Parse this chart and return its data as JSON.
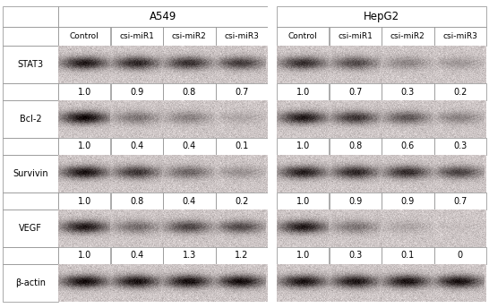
{
  "title_A549": "A549",
  "title_HepG2": "HepG2",
  "col_headers": [
    "Control",
    "csi-miR1",
    "csi-miR2",
    "csi-miR3"
  ],
  "values_A549": {
    "STAT3": [
      "1.0",
      "0.9",
      "0.8",
      "0.7"
    ],
    "Bcl-2": [
      "1.0",
      "0.4",
      "0.4",
      "0.1"
    ],
    "Survivin": [
      "1.0",
      "0.8",
      "0.4",
      "0.2"
    ],
    "VEGF": [
      "1.0",
      "0.4",
      "1.3",
      "1.2"
    ]
  },
  "values_HepG2": {
    "STAT3": [
      "1.0",
      "0.7",
      "0.3",
      "0.2"
    ],
    "Bcl-2": [
      "1.0",
      "0.8",
      "0.6",
      "0.3"
    ],
    "Survivin": [
      "1.0",
      "0.9",
      "0.9",
      "0.7"
    ],
    "VEGF": [
      "1.0",
      "0.3",
      "0.1",
      "0"
    ]
  },
  "band_intensities_A549": {
    "STAT3": [
      0.82,
      0.75,
      0.7,
      0.65
    ],
    "Bcl-2": [
      0.9,
      0.38,
      0.32,
      0.15
    ],
    "Survivin": [
      0.85,
      0.68,
      0.45,
      0.25
    ],
    "VEGF": [
      0.82,
      0.42,
      0.6,
      0.58
    ],
    "beta-actin": [
      0.88,
      0.85,
      0.86,
      0.87
    ]
  },
  "band_intensities_HepG2": {
    "STAT3": [
      0.72,
      0.58,
      0.3,
      0.22
    ],
    "Bcl-2": [
      0.82,
      0.68,
      0.52,
      0.32
    ],
    "Survivin": [
      0.8,
      0.75,
      0.72,
      0.62
    ],
    "VEGF": [
      0.82,
      0.38,
      0.15,
      0.04
    ],
    "beta-actin": [
      0.85,
      0.83,
      0.84,
      0.85
    ]
  },
  "bg_color": "#ffffff",
  "text_color": "#000000",
  "font_size": 7.0,
  "header_font_size": 8.5,
  "subheader_font_size": 6.5
}
